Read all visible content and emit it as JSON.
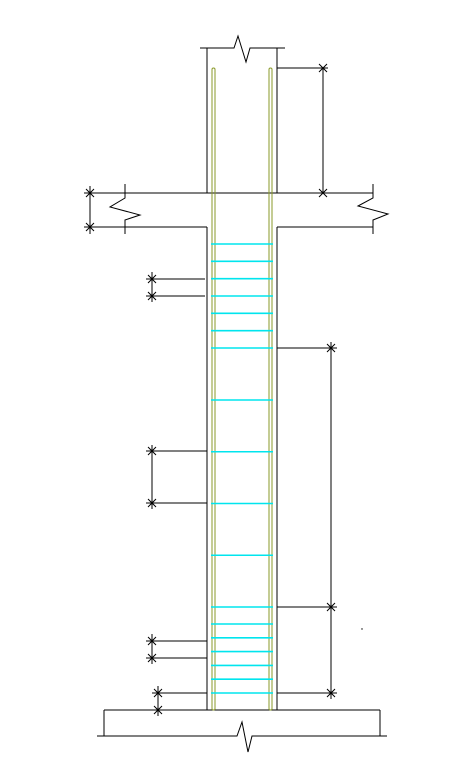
{
  "drawing": {
    "line_color": "#000000",
    "rebar_color": "#8a9a2a",
    "stirrup_color": "#00e5ee",
    "stirrup_levels": {
      "upper_dense": 7,
      "middle_sparse": 5,
      "lower_dense": 6
    }
  }
}
